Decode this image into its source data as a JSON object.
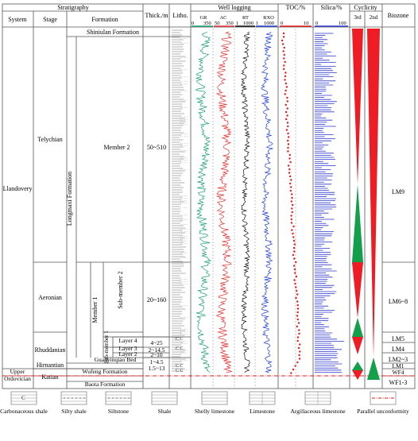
{
  "header": {
    "stratigraphy": "Stratigraphy",
    "system": "System",
    "stage": "Stage",
    "formation": "Formation",
    "thickness": "Thick./m",
    "lithology": "Litho.",
    "well_logging": "Well logging",
    "toc": "TOC/%",
    "silica": "Silica/%",
    "cyclicity": "Cyclicity",
    "cycle_3rd": "3rd",
    "cycle_2nd": "2nd",
    "biozone": "Biozone"
  },
  "log_scales": {
    "gr": {
      "name": "GR",
      "min": "0",
      "max": "350"
    },
    "ac": {
      "name": "AC",
      "min": "50",
      "max": "350"
    },
    "rt": {
      "name": "RT",
      "min": "1",
      "max": "1000"
    },
    "rxo": {
      "name": "RXO",
      "min": "1",
      "max": "1000"
    },
    "toc": {
      "min": "0",
      "max": "10"
    },
    "silica": {
      "min": "0",
      "max": "100"
    }
  },
  "systems": {
    "llandovery": "Llandovery",
    "upper_ordovician": "Upper Ordovician"
  },
  "stages": {
    "telychian": "Telychian",
    "aeronian": "Aeronian",
    "rhuddanian": "Rhuddanian",
    "hirnantian": "Hirnantian",
    "katian": "Katian"
  },
  "formations": {
    "shiniulan": "Shiniulan Formation",
    "longmaxi": "Longmaxi Formation",
    "member2": "Member 2",
    "member1": "Member 1",
    "sub_member2": "Sub-member 2",
    "sub_member1": "Sub-member 1",
    "guanyinqiao": "Guanyinqiao Bed",
    "wufeng": "Wufeng Formation",
    "baota": "Baota Formation"
  },
  "layers": [
    "Layer 4",
    "Layer 3",
    "Layer 2",
    "Layer 1"
  ],
  "thickness": {
    "member2": "50~510",
    "sub_member2": "20~160",
    "layer4": "4~25",
    "layer3": "2~14.5",
    "layer2": "2~10",
    "layer1": "1~4.5",
    "wufeng": "1.5~13"
  },
  "biozones": [
    "LM9",
    "LM6~8",
    "LM5",
    "LM4",
    "LM2~3",
    "LM1",
    "WF4",
    "WF1-3"
  ],
  "legend": [
    {
      "label": "Carbonaceous shale",
      "icon": "carbonaceous-shale-swatch"
    },
    {
      "label": "Silty shale",
      "icon": "silty-shale-swatch"
    },
    {
      "label": "Siltstone",
      "icon": "siltstone-swatch"
    },
    {
      "label": "Shale",
      "icon": "shale-swatch"
    },
    {
      "label": "Shelly limestone",
      "icon": "shelly-limestone-swatch"
    },
    {
      "label": "Limestone",
      "icon": "limestone-swatch"
    },
    {
      "label": "Argillaceous limestone",
      "icon": "argillaceous-limestone-swatch"
    },
    {
      "label": "Parallel unconformity",
      "icon": "unconformity-swatch"
    }
  ],
  "colors": {
    "gr": "#1a9e6e",
    "ac": "#e33434",
    "rt": "#111111",
    "rxo": "#1f3fd6",
    "toc": "#e31a1a",
    "silica": "#2b35c8",
    "cycle_red": "#ee1c24",
    "cycle_green": "#14a04a",
    "unconformity": "#e31a1a"
  }
}
